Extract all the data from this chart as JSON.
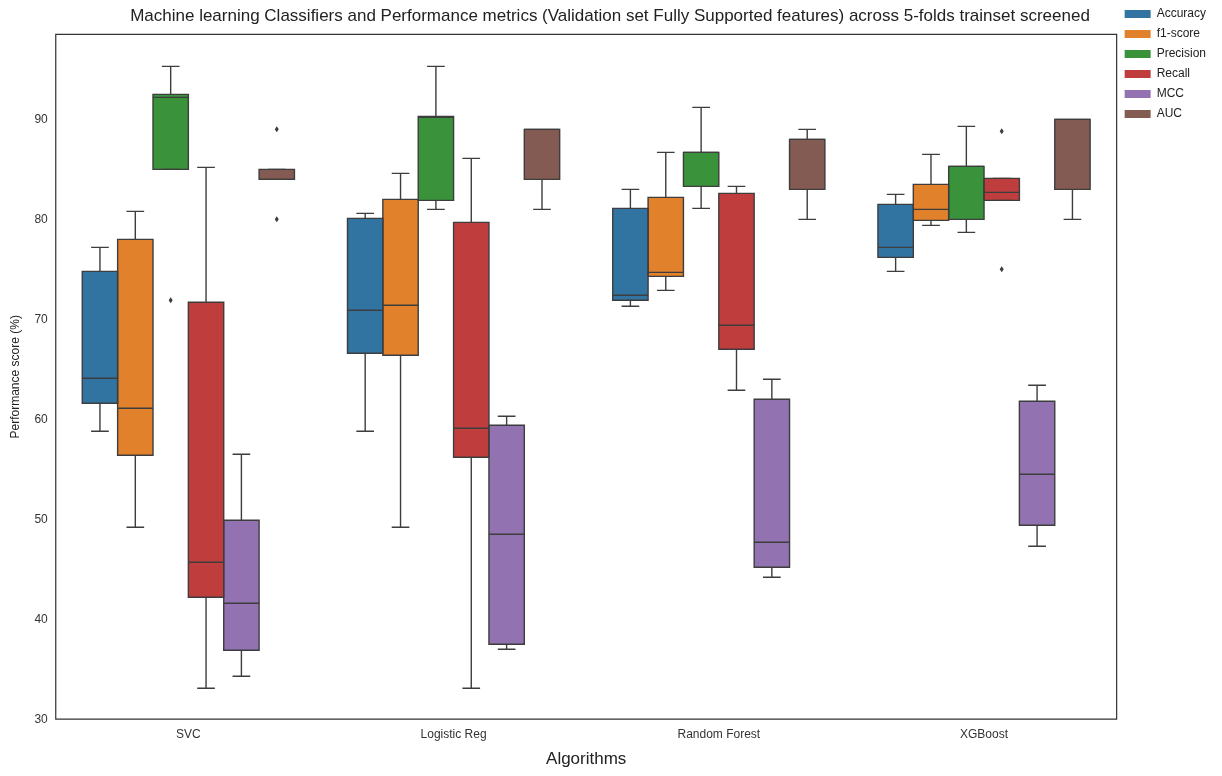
{
  "chart_data": {
    "type": "box",
    "title": "Machine learning Classifiers and Performance metrics (Validation set Fully Supported features) across 5-folds trainset screened",
    "xlabel": "Algorithms",
    "ylabel": "Performance score (%)",
    "categories": [
      "SVC",
      "Logistic Reg",
      "Random Forest",
      "XGBoost"
    ],
    "ylim": [
      30,
      98.5
    ],
    "yticks": [
      30,
      40,
      50,
      60,
      70,
      80,
      90
    ],
    "grid": false,
    "legend": "top right",
    "series": [
      {
        "name": "Accuracy",
        "color": "#3274a1",
        "boxes": [
          {
            "low": 58.8,
            "q1": 61.6,
            "median": 64.1,
            "q3": 74.8,
            "high": 77.2
          },
          {
            "low": 58.8,
            "q1": 66.6,
            "median": 70.9,
            "q3": 80.1,
            "high": 80.6
          },
          {
            "low": 71.3,
            "q1": 71.9,
            "median": 72.4,
            "q3": 81.1,
            "high": 83.0
          },
          {
            "low": 74.8,
            "q1": 76.2,
            "median": 77.2,
            "q3": 81.5,
            "high": 82.5
          }
        ]
      },
      {
        "name": "f1-score",
        "color": "#e1812c",
        "boxes": [
          {
            "low": 49.2,
            "q1": 56.4,
            "median": 61.1,
            "q3": 78.0,
            "high": 80.8
          },
          {
            "low": 49.2,
            "q1": 66.4,
            "median": 71.4,
            "q3": 82.0,
            "high": 84.6
          },
          {
            "low": 72.9,
            "q1": 74.3,
            "median": 74.7,
            "q3": 82.2,
            "high": 86.7
          },
          {
            "low": 79.4,
            "q1": 79.9,
            "median": 81.0,
            "q3": 83.5,
            "high": 86.5
          }
        ]
      },
      {
        "name": "Precision",
        "color": "#3a923a",
        "boxes": [
          {
            "low": 85.0,
            "q1": 85.0,
            "median": 92.2,
            "q3": 92.5,
            "high": 95.3,
            "outliers": [
              71.9
            ]
          },
          {
            "low": 81.0,
            "q1": 81.9,
            "median": 90.2,
            "q3": 90.3,
            "high": 95.3
          },
          {
            "low": 81.1,
            "q1": 83.3,
            "median": 86.7,
            "q3": 86.7,
            "high": 91.2
          },
          {
            "low": 78.7,
            "q1": 80.0,
            "median": 85.3,
            "q3": 85.3,
            "high": 89.3
          }
        ]
      },
      {
        "name": "Recall",
        "color": "#c03d3e",
        "boxes": [
          {
            "low": 33.1,
            "q1": 42.2,
            "median": 45.7,
            "q3": 71.7,
            "high": 85.2
          },
          {
            "low": 33.1,
            "q1": 56.2,
            "median": 59.1,
            "q3": 79.7,
            "high": 86.1
          },
          {
            "low": 62.9,
            "q1": 67.0,
            "median": 69.4,
            "q3": 82.6,
            "high": 83.3
          },
          {
            "low": 81.9,
            "q1": 81.9,
            "median": 82.7,
            "q3": 84.1,
            "high": 84.1,
            "outliers": [
              88.8,
              75.0
            ]
          }
        ]
      },
      {
        "name": "MCC",
        "color": "#9372b2",
        "boxes": [
          {
            "low": 34.3,
            "q1": 36.9,
            "median": 41.6,
            "q3": 49.9,
            "high": 56.5
          },
          {
            "low": 37.0,
            "q1": 37.5,
            "median": 48.5,
            "q3": 59.4,
            "high": 60.3
          },
          {
            "low": 44.2,
            "q1": 45.2,
            "median": 47.7,
            "q3": 62.0,
            "high": 64.0
          },
          {
            "low": 47.3,
            "q1": 49.4,
            "median": 54.5,
            "q3": 61.8,
            "high": 63.4
          }
        ]
      },
      {
        "name": "AUC",
        "color": "#845b53",
        "boxes": [
          {
            "low": 84.0,
            "q1": 84.0,
            "median": 84.0,
            "q3": 85.0,
            "high": 85.0,
            "outliers": [
              89.0,
              80.0
            ]
          },
          {
            "low": 81.0,
            "q1": 84.0,
            "median": 89.0,
            "q3": 89.0,
            "high": 89.0
          },
          {
            "low": 80.0,
            "q1": 83.0,
            "median": 88.0,
            "q3": 88.0,
            "high": 89.0
          },
          {
            "low": 80.0,
            "q1": 83.0,
            "median": 90.0,
            "q3": 90.0,
            "high": 90.0
          }
        ]
      }
    ]
  }
}
